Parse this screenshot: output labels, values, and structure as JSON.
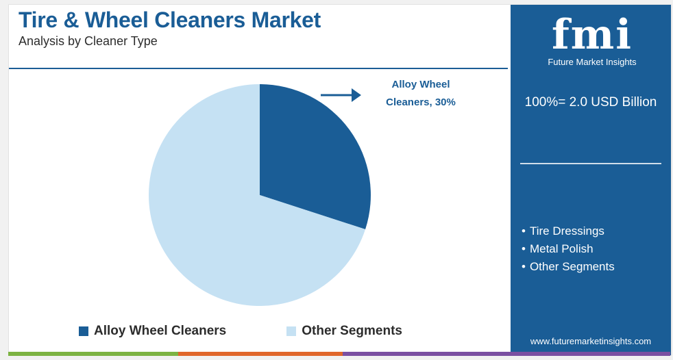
{
  "header": {
    "title": "Tire & Wheel Cleaners Market",
    "subtitle": "Analysis by Cleaner Type"
  },
  "chart_data": {
    "type": "pie",
    "slices": [
      {
        "name": "Alloy Wheel Cleaners",
        "value": 30,
        "color": "#1a5d96"
      },
      {
        "name": "Other Segments",
        "value": 70,
        "color": "#c5e1f3"
      }
    ],
    "annotation": {
      "line1": "Alloy Wheel",
      "line2": "Cleaners, 30%"
    },
    "legend": [
      "Alloy Wheel Cleaners",
      "Other Segments"
    ],
    "legend_position": "bottom"
  },
  "panel": {
    "logo_text": "fmi",
    "logo_sub": "Future Market Insights",
    "total": "100%= 2.0 USD Billion",
    "segments": [
      "Tire Dressings",
      "Metal Polish",
      "Other Segments"
    ],
    "url": "www.futuremarketinsights.com"
  },
  "colors": {
    "primary": "#1a5d96",
    "light": "#c5e1f3",
    "bar_green": "#7cb342",
    "bar_orange": "#e0662a",
    "bar_purple": "#7a4fa1"
  }
}
